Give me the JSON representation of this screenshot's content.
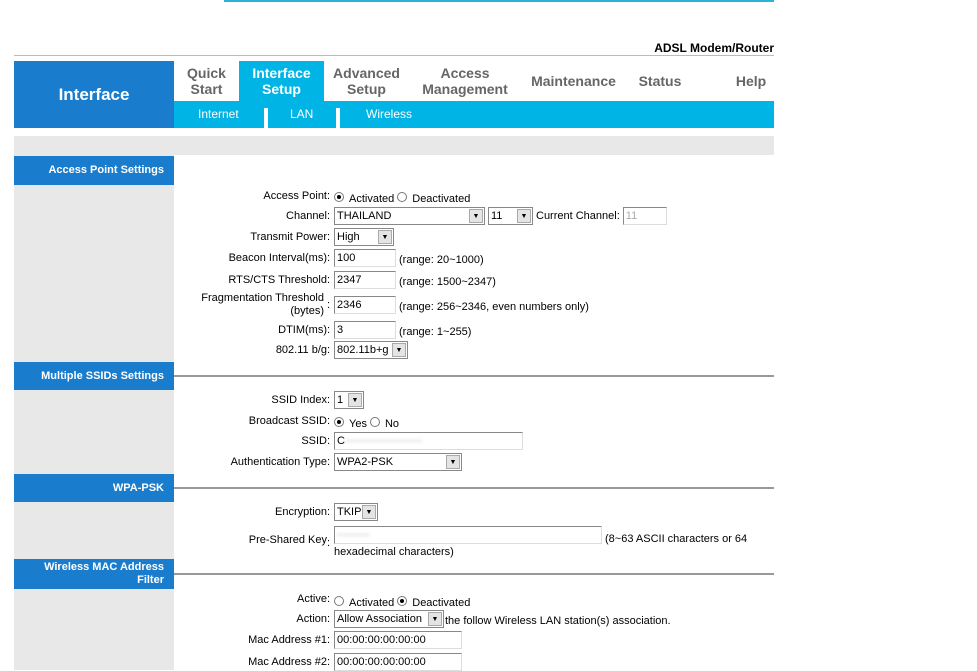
{
  "header": {
    "model": "ADSL Modem/Router",
    "section": "Interface"
  },
  "nav": {
    "tabs": [
      {
        "l1": "Quick",
        "l2": "Start"
      },
      {
        "l1": "Interface",
        "l2": "Setup"
      },
      {
        "l1": "Advanced",
        "l2": "Setup"
      },
      {
        "l1": "Access",
        "l2": "Management"
      },
      {
        "l1": "Maintenance",
        "l2": ""
      },
      {
        "l1": "Status",
        "l2": ""
      },
      {
        "l1": "Help",
        "l2": ""
      }
    ],
    "active": "Interface Setup",
    "subtabs": [
      "Internet",
      "LAN",
      "Wireless"
    ]
  },
  "colors": {
    "brand_blue": "#1a7ccc",
    "accent_cyan": "#00b4e6"
  },
  "ap": {
    "title": "Access Point Settings",
    "access_point_label": "Access Point",
    "activated": "Activated",
    "deactivated": "Deactivated",
    "channel_label": "Channel",
    "channel_region": "THAILAND",
    "channel_value": "11",
    "current_channel_label": "Current Channel:",
    "current_channel": "11",
    "tx_label": "Transmit Power",
    "tx_value": "High",
    "beacon_label": "Beacon Interval(ms)",
    "beacon_value": "100",
    "beacon_range": "(range: 20~1000)",
    "rts_label": "RTS/CTS Threshold",
    "rts_value": "2347",
    "rts_range": "(range: 1500~2347)",
    "frag_label1": "Fragmentation Threshold",
    "frag_label2": "(bytes)",
    "frag_value": "2346",
    "frag_range": "(range: 256~2346, even numbers only)",
    "dtim_label": "DTIM(ms)",
    "dtim_value": "3",
    "dtim_range": "(range: 1~255)",
    "mode_label": "802.11 b/g",
    "mode_value": "802.11b+g"
  },
  "ssid": {
    "title": "Multiple SSIDs Settings",
    "index_label": "SSID Index",
    "index_value": "1",
    "broadcast_label": "Broadcast SSID",
    "yes": "Yes",
    "no": "No",
    "ssid_label": "SSID",
    "ssid_value": "C",
    "auth_label": "Authentication Type",
    "auth_value": "WPA2-PSK"
  },
  "wpa": {
    "title": "WPA-PSK",
    "enc_label": "Encryption",
    "enc_value": "TKIP",
    "psk_label": "Pre-Shared Key",
    "psk_hint1": "(8~63 ASCII characters or 64",
    "psk_hint2": "hexadecimal characters)"
  },
  "mac": {
    "title1": "Wireless MAC Address",
    "title2": "Filter",
    "active_label": "Active",
    "activated": "Activated",
    "deactivated": "Deactivated",
    "action_label": "Action",
    "action_value": "Allow Association",
    "action_suffix": "the follow Wireless LAN station(s) association.",
    "mac1_label": "Mac Address #1",
    "mac1_value": "00:00:00:00:00:00",
    "mac2_label": "Mac Address #2",
    "mac2_value": "00:00:00:00:00:00"
  },
  "colon": ":"
}
